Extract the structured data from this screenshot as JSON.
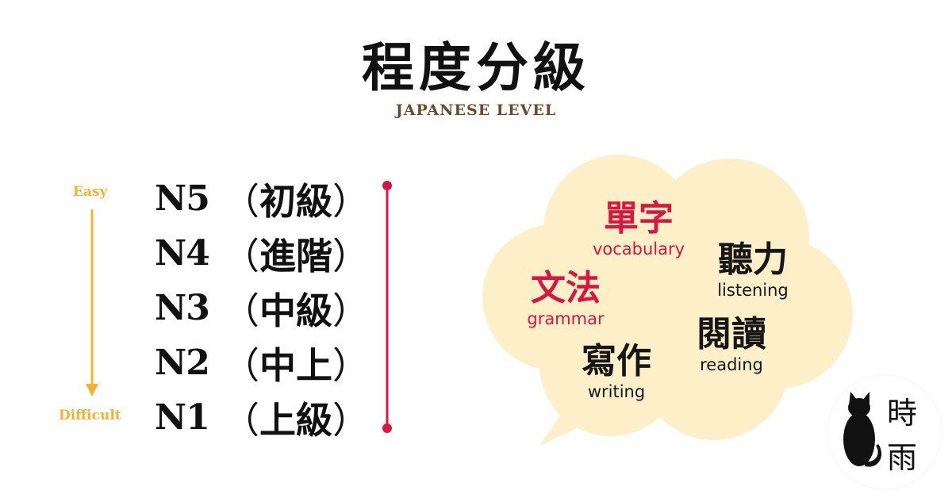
{
  "header": {
    "title": "程度分級",
    "subtitle": "JAPANESE LEVEL"
  },
  "scale": {
    "easy_label": "Easy",
    "difficult_label": "Difficult",
    "arrow_color": "#f2b233"
  },
  "levels": [
    {
      "code": "N5",
      "open": "（",
      "name": "初級",
      "close": "）"
    },
    {
      "code": "N4",
      "open": "（",
      "name": "進階",
      "close": "）"
    },
    {
      "code": "N3",
      "open": "（",
      "name": "中級",
      "close": "）"
    },
    {
      "code": "N2",
      "open": "（",
      "name": "中上",
      "close": "）"
    },
    {
      "code": "N1",
      "open": "（",
      "name": "上級",
      "close": "）"
    }
  ],
  "divider_color": "#d9163f",
  "skills": [
    {
      "zh": "單字",
      "en": "vocabulary",
      "color": "#d9163f"
    },
    {
      "zh": "聽力",
      "en": "listening",
      "color": "#161616"
    },
    {
      "zh": "文法",
      "en": "grammar",
      "color": "#d9163f"
    },
    {
      "zh": "閱讀",
      "en": "reading",
      "color": "#161616"
    },
    {
      "zh": "寫作",
      "en": "writing",
      "color": "#161616"
    }
  ],
  "cloud_color": "#fdefc8",
  "logo": {
    "char1": "時",
    "char2": "雨",
    "icon": "cat-silhouette-icon"
  }
}
